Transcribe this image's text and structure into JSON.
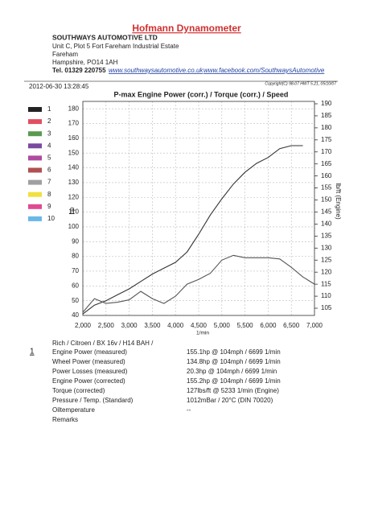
{
  "header": {
    "title": "Hofmann Dynamometer",
    "company": "SOUTHWAYS AUTOMOTIVE LTD",
    "address": [
      "Unit C, Plot 5 Fort Fareham Industrial Estate",
      "Fareham",
      "Hampshire, PO14 1AH"
    ],
    "tel": "Tel. 01329 220755",
    "links": [
      "www.southwaysautomotive.co.uk",
      "www.facebook.com/SouthwaysAutomotive"
    ]
  },
  "timestamp": "2012-06-30 13:28:45",
  "copyright": "Copyright(C) 98-07 HWT 5.21, 05/10/07",
  "legend": [
    {
      "label": "1",
      "color": "#222222"
    },
    {
      "label": "2",
      "color": "#e05060"
    },
    {
      "label": "3",
      "color": "#5a9a50"
    },
    {
      "label": "4",
      "color": "#7a4aa0"
    },
    {
      "label": "5",
      "color": "#b04aa0"
    },
    {
      "label": "6",
      "color": "#b05050"
    },
    {
      "label": "7",
      "color": "#a0a0a0"
    },
    {
      "label": "8",
      "color": "#f0e040"
    },
    {
      "label": "9",
      "color": "#e04a90"
    },
    {
      "label": "10",
      "color": "#6ab8e8"
    }
  ],
  "chart_data": {
    "type": "line",
    "title": "P-max Engine Power (corr.) / Torque (corr.) / Speed",
    "x_label": "1/min",
    "y_label": "hp",
    "y2_label": "lb/ft (Engine)",
    "x": [
      2000,
      2250,
      2500,
      2750,
      3000,
      3250,
      3500,
      3750,
      4000,
      4250,
      4500,
      4750,
      5000,
      5250,
      5500,
      5750,
      6000,
      6250,
      6500,
      6750,
      7000
    ],
    "series": [
      {
        "color": "#333333",
        "values": [
          41,
          47,
          50,
          54,
          58,
          63,
          68,
          72,
          76,
          83,
          95,
          108,
          119,
          129,
          137,
          143,
          147,
          153,
          155,
          155,
          null
        ]
      },
      {
        "color": "#555555",
        "axis": "y2",
        "values": [
          103.3,
          109,
          107,
          107.5,
          108.5,
          112,
          109,
          107,
          110,
          115,
          117,
          119.5,
          125,
          127,
          126,
          126,
          126,
          125.5,
          122,
          118,
          115
        ]
      }
    ],
    "xlim": [
      2000,
      7000
    ],
    "xticks": [
      {
        "value": 2000,
        "label": "2,000"
      },
      {
        "value": 2500,
        "label": "2,500"
      },
      {
        "value": 3000,
        "label": "3,000"
      },
      {
        "value": 3500,
        "label": "3,500"
      },
      {
        "value": 4000,
        "label": "4,000"
      },
      {
        "value": 4500,
        "label": "4,500"
      },
      {
        "value": 5000,
        "label": "5,000"
      },
      {
        "value": 5500,
        "label": "5,500"
      },
      {
        "value": 6000,
        "label": "6,000"
      },
      {
        "value": 6500,
        "label": "6,500"
      },
      {
        "value": 7000,
        "label": "7,000"
      }
    ],
    "ylim": [
      40,
      185
    ],
    "yticks": [
      40,
      50,
      60,
      70,
      80,
      90,
      100,
      110,
      120,
      130,
      140,
      150,
      160,
      170,
      180
    ],
    "y2lim": [
      102,
      191
    ],
    "y2ticks": [
      105,
      110,
      115,
      120,
      125,
      130,
      135,
      140,
      145,
      150,
      155,
      160,
      165,
      170,
      175,
      180,
      185,
      190
    ],
    "grid": true
  },
  "run": {
    "number": "1",
    "vehicle": "Rich / Citroen / BX 16v / H14 BAH /",
    "rows": [
      [
        "Engine Power (measured)",
        "155.1hp @ 104mph / 6699 1/min"
      ],
      [
        "Wheel Power (measured)",
        "134.8hp @ 104mph / 6699 1/min"
      ],
      [
        "Power Losses (measured)",
        "20.3hp @ 104mph / 6699 1/min"
      ],
      [
        "Engine Power (corrected)",
        "155.2hp @ 104mph / 6699 1/min"
      ],
      [
        "Torque (corrected)",
        "127lbs/ft @ 5233 1/min (Engine)"
      ],
      [
        "Pressure / Temp. (Standard)",
        "1012mBar / 20°C   (DIN 70020)"
      ],
      [
        "Oiltemperature",
        "--"
      ],
      [
        "Remarks"
      ]
    ]
  }
}
